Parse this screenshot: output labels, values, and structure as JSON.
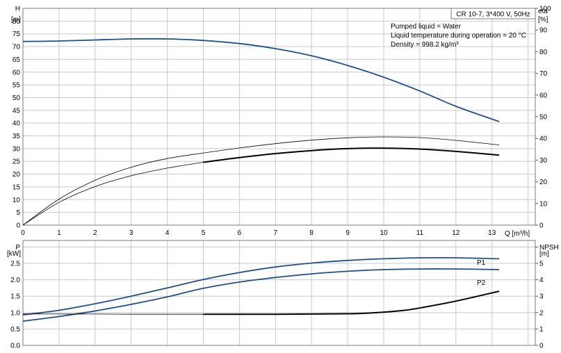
{
  "chart_data": [
    {
      "type": "line",
      "title": "CR 10-7, 3*400 V, 50Hz",
      "info_lines": [
        "Pumped liquid = Water",
        "Liquid temperature during operation = 20 °C",
        "Density = 998.2 kg/m³"
      ],
      "xlabel": "Q [m³/h]",
      "ylabel_left": "H",
      "ylabel_left_unit": "[m]",
      "ylabel_right": "eta",
      "ylabel_right_unit": "[%]",
      "xlim": [
        0,
        14.2
      ],
      "ylim_left": [
        0,
        85
      ],
      "ylim_right": [
        0,
        100
      ],
      "x_ticks": [
        "0",
        "1",
        "2",
        "3",
        "4",
        "5",
        "6",
        "7",
        "8",
        "9",
        "10",
        "11",
        "12",
        "13"
      ],
      "y_ticks_left": [
        "0",
        "5",
        "10",
        "15",
        "20",
        "25",
        "30",
        "35",
        "40",
        "45",
        "50",
        "55",
        "60",
        "65",
        "70",
        "75",
        "80",
        "H"
      ],
      "y_ticks_right": [
        "0",
        "10",
        "20",
        "30",
        "40",
        "50",
        "60",
        "70",
        "80",
        "90",
        "100"
      ],
      "grid": true,
      "series": [
        {
          "axis": "left",
          "color": "#1f4e8c",
          "x": [
            0,
            1,
            2,
            3,
            4,
            5,
            6,
            7,
            8,
            9,
            10,
            11,
            12,
            13.2
          ],
          "values": [
            72,
            72.2,
            72.6,
            73,
            73,
            72.4,
            71.2,
            69.2,
            66.4,
            62.6,
            58,
            52.6,
            46.6,
            40.6
          ]
        },
        {
          "axis": "right",
          "color": "#000000",
          "width": 0.8,
          "x": [
            0,
            1,
            2,
            3,
            4,
            5,
            6,
            7,
            8,
            9,
            10,
            11,
            12,
            13.2
          ],
          "values": [
            0,
            12,
            20.7,
            26.7,
            30.7,
            33.3,
            35.6,
            37.6,
            39.2,
            40.3,
            40.7,
            40.4,
            39.1,
            37
          ]
        },
        {
          "axis": "right",
          "color": "#000000",
          "width": 0.8,
          "x": [
            0,
            1,
            2,
            3,
            4,
            5
          ],
          "values": [
            0,
            10.5,
            17.8,
            22.8,
            26.3,
            29
          ]
        },
        {
          "axis": "right",
          "color": "#000000",
          "width": 2,
          "x": [
            5,
            6,
            7,
            8,
            9,
            10,
            11,
            12,
            13.2
          ],
          "values": [
            29,
            31.2,
            33,
            34.4,
            35.3,
            35.5,
            35.1,
            34,
            32.3
          ]
        }
      ]
    },
    {
      "type": "line",
      "ylabel_left": "P",
      "ylabel_left_unit": "[kW]",
      "ylabel_right": "NPSH",
      "ylabel_right_unit": "[m]",
      "xlim": [
        0,
        14.2
      ],
      "ylim_left": [
        0,
        3.2
      ],
      "ylim_right": [
        0,
        6.4
      ],
      "y_ticks_left": [
        "0.0",
        "0.5",
        "1.0",
        "1.5",
        "2.0",
        "2.5",
        "P"
      ],
      "y_ticks_right": [
        "0",
        "1",
        "2",
        "3",
        "4",
        "5",
        "NPSH"
      ],
      "grid": true,
      "series": [
        {
          "name": "P1",
          "axis": "left",
          "color": "#1f4e8c",
          "x": [
            0,
            1,
            2,
            3,
            4,
            5,
            6,
            7,
            8,
            9,
            10,
            11,
            12,
            13.2
          ],
          "values": [
            0.93,
            1.07,
            1.27,
            1.5,
            1.75,
            2.01,
            2.22,
            2.39,
            2.51,
            2.59,
            2.64,
            2.67,
            2.67,
            2.64
          ]
        },
        {
          "name": "P2",
          "axis": "left",
          "color": "#1f4e8c",
          "x": [
            0,
            1,
            2,
            3,
            4,
            5,
            6,
            7,
            8,
            9,
            10,
            11,
            12,
            13.2
          ],
          "values": [
            0.74,
            0.88,
            1.05,
            1.25,
            1.48,
            1.74,
            1.93,
            2.07,
            2.18,
            2.26,
            2.31,
            2.33,
            2.33,
            2.31
          ]
        },
        {
          "axis": "right",
          "color": "#000000",
          "width": 0.8,
          "x": [
            0,
            1,
            2,
            3,
            4,
            5
          ],
          "values": [
            1.92,
            1.91,
            1.91,
            1.9,
            1.9,
            1.9
          ]
        },
        {
          "axis": "right",
          "color": "#000000",
          "width": 2,
          "x": [
            5,
            6,
            7,
            8,
            9,
            9.6,
            10.5,
            11,
            12,
            13.2
          ],
          "values": [
            1.9,
            1.9,
            1.9,
            1.91,
            1.93,
            1.97,
            2.12,
            2.28,
            2.7,
            3.3
          ]
        }
      ]
    }
  ]
}
